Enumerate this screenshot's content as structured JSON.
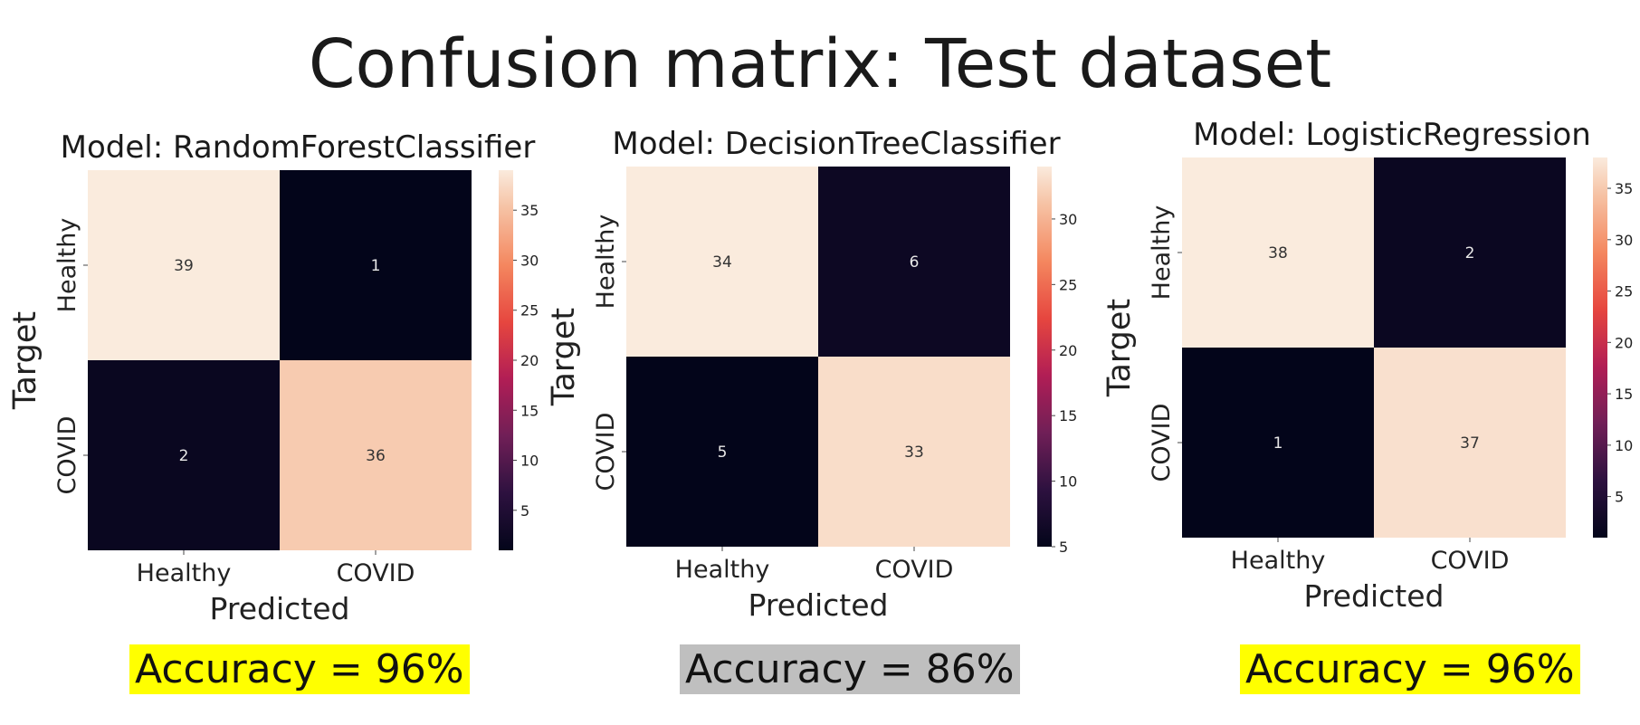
{
  "slide": {
    "title": "Confusion matrix: Test dataset"
  },
  "chart_data": [
    {
      "type": "heatmap",
      "title": "Model: RandomForestClassifier",
      "xlabel": "Predicted",
      "ylabel": "Target",
      "x_categories": [
        "Healthy",
        "COVID"
      ],
      "y_categories": [
        "Healthy",
        "COVID"
      ],
      "values": [
        [
          39,
          1
        ],
        [
          2,
          36
        ]
      ],
      "colorbar": {
        "min": 1,
        "max": 39,
        "ticks": [
          5,
          10,
          15,
          20,
          25,
          30,
          35
        ]
      },
      "accuracy_label": "Accuracy = 96%",
      "highlight_color": "#ffff00"
    },
    {
      "type": "heatmap",
      "title": "Model: DecisionTreeClassifier",
      "xlabel": "Predicted",
      "ylabel": "Target",
      "x_categories": [
        "Healthy",
        "COVID"
      ],
      "y_categories": [
        "Healthy",
        "COVID"
      ],
      "values": [
        [
          34,
          6
        ],
        [
          5,
          33
        ]
      ],
      "colorbar": {
        "min": 5,
        "max": 34,
        "ticks": [
          5,
          10,
          15,
          20,
          25,
          30
        ]
      },
      "accuracy_label": "Accuracy = 86%",
      "highlight_color": "#bfbfbf"
    },
    {
      "type": "heatmap",
      "title": "Model: LogisticRegression",
      "xlabel": "Predicted",
      "ylabel": "Target",
      "x_categories": [
        "Healthy",
        "COVID"
      ],
      "y_categories": [
        "Healthy",
        "COVID"
      ],
      "values": [
        [
          38,
          2
        ],
        [
          1,
          37
        ]
      ],
      "colorbar": {
        "min": 1,
        "max": 38,
        "ticks": [
          5,
          10,
          15,
          20,
          25,
          30,
          35
        ]
      },
      "accuracy_label": "Accuracy = 96%",
      "highlight_color": "#ffff00"
    }
  ]
}
